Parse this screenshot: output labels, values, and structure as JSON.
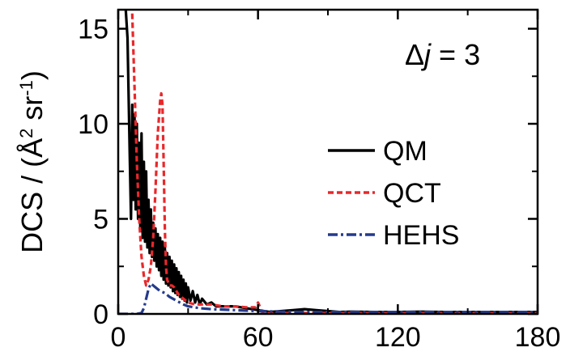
{
  "chart_data": {
    "type": "line",
    "title": "",
    "annotation": {
      "prefix": "Δ",
      "italic": "j",
      "suffix": " = 3"
    },
    "xlabel": "",
    "ylabel": {
      "text": "DCS / (Å",
      "sup1": "2",
      "mid": " sr",
      "sup2": "-1",
      "end": ")"
    },
    "xlim": [
      0,
      180
    ],
    "ylim": [
      0,
      16
    ],
    "xticks": [
      0,
      60,
      120,
      180
    ],
    "yticks": [
      0,
      5,
      10,
      15
    ],
    "xtick_labels": [
      "0",
      "60",
      "120",
      "180"
    ],
    "ytick_labels": [
      "0",
      "5",
      "10",
      "15"
    ],
    "legend": {
      "position": "center-right"
    },
    "series": [
      {
        "name": "QM",
        "color": "#000000",
        "dash": "solid",
        "x": [
          3,
          4,
          5,
          5.5,
          6,
          6.5,
          7,
          7.5,
          8,
          8.5,
          9,
          9.5,
          10,
          10.5,
          11,
          11.5,
          12,
          12.5,
          13,
          13.5,
          14,
          14.5,
          15,
          15.5,
          16,
          16.5,
          17,
          17.5,
          18,
          18.5,
          19,
          19.5,
          20,
          20.5,
          21,
          21.5,
          22,
          22.5,
          23,
          23.5,
          24,
          24.5,
          25,
          25.5,
          26,
          26.5,
          27,
          27.5,
          28,
          28.5,
          29,
          29.5,
          30,
          31,
          32,
          33,
          34,
          35,
          36,
          38,
          40,
          42,
          45,
          50,
          55,
          60,
          65,
          70,
          75,
          80,
          85,
          90,
          95,
          100,
          110,
          120,
          130,
          140,
          150,
          160,
          170,
          180
        ],
        "values": [
          16.5,
          14.5,
          8.0,
          5.0,
          11.0,
          6.0,
          10.5,
          5.5,
          10.0,
          5.0,
          9.0,
          4.5,
          9.5,
          4.0,
          8.0,
          3.8,
          7.5,
          3.5,
          6.0,
          3.2,
          5.5,
          3.0,
          4.8,
          2.8,
          4.5,
          2.5,
          4.2,
          2.3,
          4.0,
          2.0,
          3.8,
          1.8,
          3.5,
          1.6,
          3.2,
          1.5,
          3.0,
          1.4,
          2.8,
          1.2,
          2.6,
          1.1,
          2.4,
          1.0,
          2.2,
          0.9,
          2.0,
          0.8,
          1.8,
          0.7,
          1.6,
          0.6,
          1.4,
          0.7,
          1.2,
          0.6,
          1.0,
          0.5,
          0.8,
          0.5,
          0.6,
          0.4,
          0.4,
          0.4,
          0.3,
          0.2,
          0.1,
          0.15,
          0.2,
          0.25,
          0.2,
          0.15,
          0.1,
          0.12,
          0.1,
          0.1,
          0.12,
          0.1,
          0.1,
          0.1,
          0.1,
          0.1
        ]
      },
      {
        "name": "QCT",
        "color": "#e8282b",
        "dash": "7,4",
        "x": [
          6,
          7,
          8,
          9,
          10,
          11,
          12,
          13,
          14,
          15,
          16,
          17,
          18,
          18.5,
          19,
          19.5,
          20,
          20.5,
          21,
          22,
          23,
          24,
          25,
          26,
          28,
          30,
          33,
          36,
          40,
          45,
          50,
          55,
          59,
          60,
          62,
          70,
          80,
          100,
          120,
          140,
          160,
          180
        ],
        "values": [
          15.8,
          12.0,
          8.0,
          5.0,
          3.0,
          2.0,
          1.5,
          1.8,
          2.5,
          4.0,
          6.5,
          9.5,
          11.2,
          11.6,
          11.0,
          8.0,
          4.5,
          2.5,
          1.8,
          1.5,
          1.5,
          1.4,
          1.2,
          1.0,
          0.8,
          0.6,
          0.5,
          0.5,
          0.5,
          0.4,
          0.4,
          0.35,
          0.35,
          0.6,
          0.05,
          0.05,
          0.05,
          0.05,
          0.05,
          0.05,
          0.05,
          0.05
        ]
      },
      {
        "name": "HEHS",
        "color": "#243a8c",
        "dash": "12,4,3,4",
        "x": [
          0,
          8,
          10,
          11,
          12,
          13,
          14,
          15,
          16,
          18,
          20,
          22,
          25,
          28,
          30,
          35,
          40,
          50,
          60,
          70,
          80,
          100,
          120,
          140,
          160,
          180
        ],
        "values": [
          0,
          0,
          0.05,
          0.3,
          0.8,
          1.3,
          1.6,
          1.5,
          1.4,
          1.2,
          1.1,
          0.9,
          0.7,
          0.5,
          0.4,
          0.3,
          0.25,
          0.2,
          0.15,
          0.12,
          0.1,
          0.1,
          0.1,
          0.1,
          0.1,
          0.1
        ]
      }
    ]
  }
}
